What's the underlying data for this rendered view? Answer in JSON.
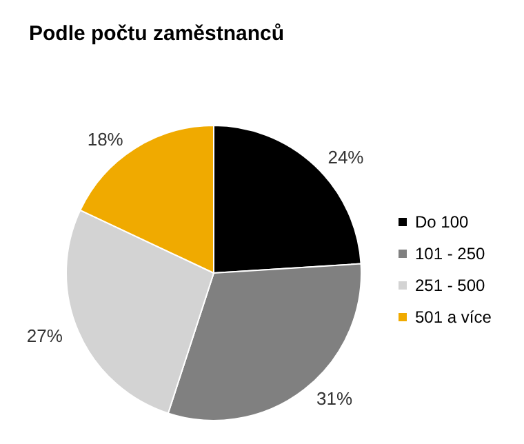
{
  "chart_data": {
    "type": "pie",
    "title": "Podle počtu zaměstnanců",
    "categories": [
      "Do 100",
      "101 - 250",
      "251 - 500",
      "501 a více"
    ],
    "values": [
      24,
      31,
      27,
      18
    ],
    "colors": [
      "#000000",
      "#808080",
      "#d3d3d3",
      "#f0aa00"
    ],
    "value_labels": [
      "24%",
      "31%",
      "27%",
      "18%"
    ],
    "legend": "right"
  }
}
